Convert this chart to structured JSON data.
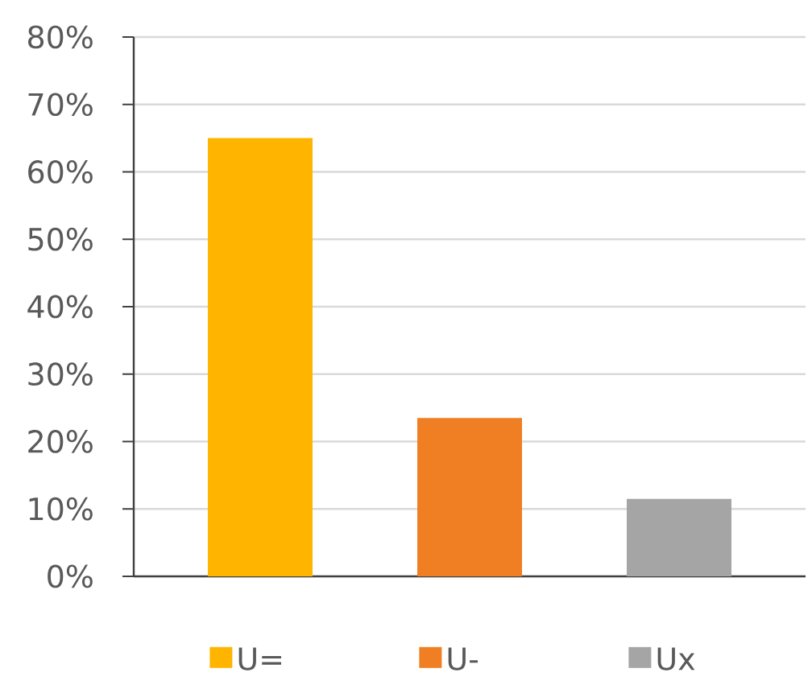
{
  "chart_data": {
    "type": "bar",
    "categories": [
      null
    ],
    "series": [
      {
        "name": "U=",
        "color": "#ffb400",
        "values": [
          65
        ]
      },
      {
        "name": "U-",
        "color": "#ef7f22",
        "values": [
          23.5
        ]
      },
      {
        "name": "Ux",
        "color": "#a5a5a5",
        "values": [
          11.5
        ]
      }
    ],
    "ylim": [
      0,
      80
    ],
    "yticks": [
      {
        "value": 0,
        "label": "0%"
      },
      {
        "value": 10,
        "label": "10%"
      },
      {
        "value": 20,
        "label": "20%"
      },
      {
        "value": 30,
        "label": "30%"
      },
      {
        "value": 40,
        "label": "40%"
      },
      {
        "value": 50,
        "label": "50%"
      },
      {
        "value": 60,
        "label": "60%"
      },
      {
        "value": 70,
        "label": "70%"
      },
      {
        "value": 80,
        "label": "80%"
      }
    ],
    "grid": "y",
    "legend": "bottom"
  }
}
